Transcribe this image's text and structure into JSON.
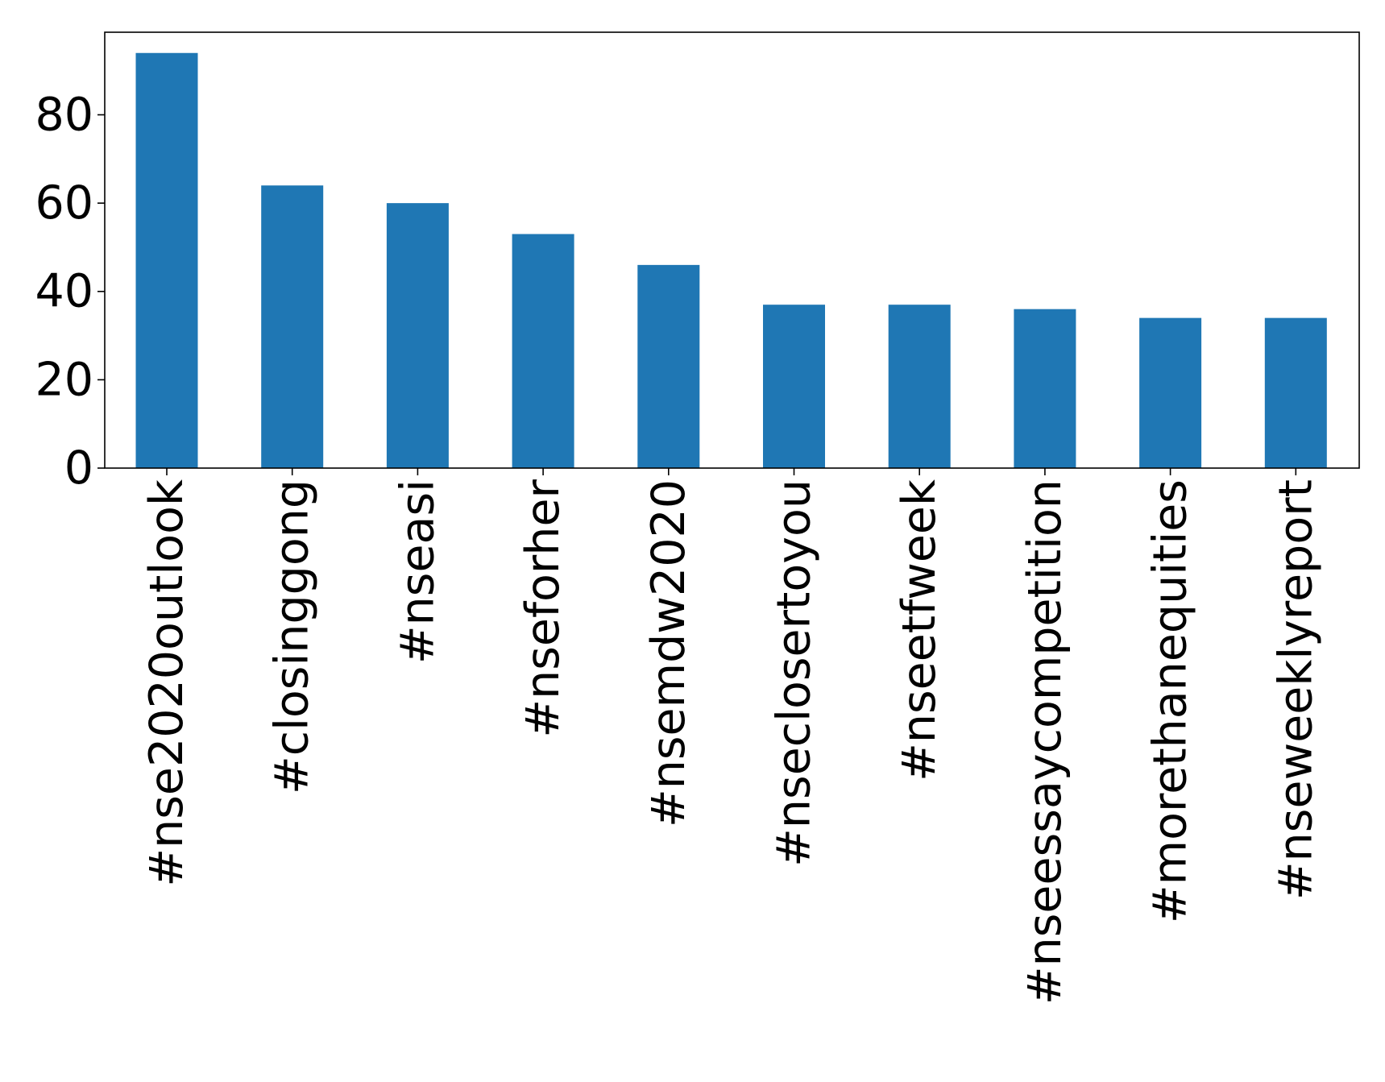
{
  "chart_data": {
    "type": "bar",
    "categories": [
      "#nse2020outlook",
      "#closinggong",
      "#nseasi",
      "#nseforher",
      "#nsemdw2020",
      "#nsecloserto​you",
      "#nseetfweek",
      "#nseessaycompetition",
      "#morethanequities",
      "#nseweeklyreport"
    ],
    "values": [
      94,
      64,
      60,
      53,
      46,
      37,
      37,
      36,
      34,
      34
    ],
    "yticks": [
      "0",
      "20",
      "40",
      "60",
      "80"
    ],
    "ylim": [
      0,
      98.7
    ],
    "grid": false,
    "legend": "none",
    "colors": {
      "bar": "#1f77b4",
      "axis": "#000000"
    }
  }
}
